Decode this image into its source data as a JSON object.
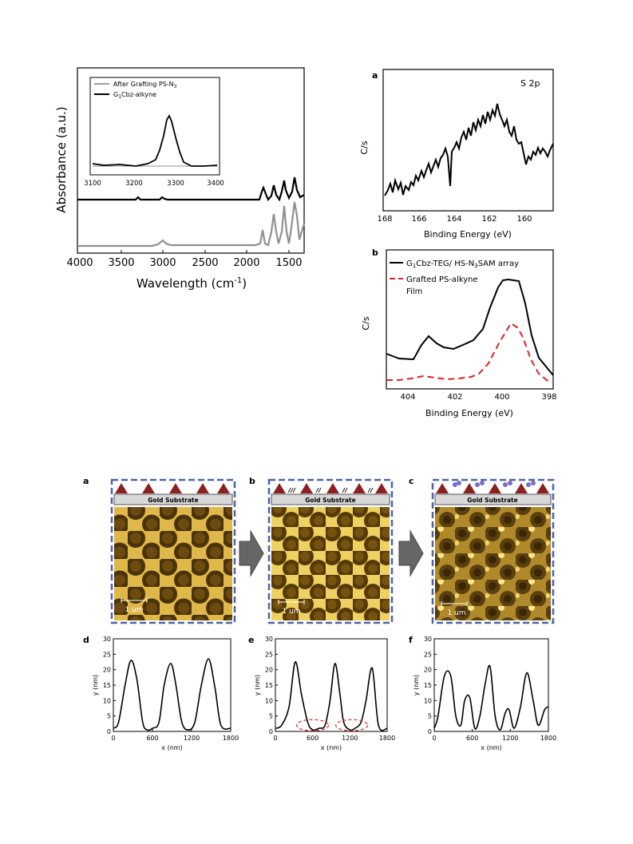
{
  "fig1": {
    "ir": {
      "xlabel": "Wavelength (cm",
      "xlabel_sup": "-1",
      "xlabel_end": ")",
      "ylabel": "Absorbance (a.u.)",
      "xticks": [
        "4000",
        "3500",
        "3000",
        "2500",
        "2000",
        "1500"
      ],
      "inset": {
        "legend": [
          "After Grafting PS-N",
          "G",
          "Cbz-alkyne"
        ],
        "legend_sub": [
          "3",
          "1"
        ],
        "xticks": [
          "3100",
          "3200",
          "3300",
          "3400"
        ]
      }
    },
    "xps_s": {
      "label": "a",
      "annotation": "S 2p",
      "ylabel": "C/s",
      "xlabel": "Binding Energy (eV)",
      "xticks": [
        "168",
        "166",
        "164",
        "162",
        "160"
      ]
    },
    "xps_n": {
      "label": "b",
      "ylabel": "C/s",
      "xlabel": "Binding Energy (eV)",
      "xticks": [
        "404",
        "402",
        "400",
        "398"
      ],
      "legend": [
        "G",
        "Cbz-TEG/ HS-N",
        "SAM array",
        "Grafted PS-alkyne",
        "Film"
      ],
      "legend_sub": [
        "1",
        "3"
      ]
    }
  },
  "fig2": {
    "panels": [
      {
        "label": "a",
        "substrate": "Gold Substrate",
        "scale": "1 um"
      },
      {
        "label": "b",
        "substrate": "Gold Substrate",
        "scale": "1 um"
      },
      {
        "label": "c",
        "substrate": "Gold Substrate",
        "scale": "1 um"
      }
    ],
    "profiles": [
      {
        "label": "d",
        "ylabel": "y (nm)",
        "xlabel": "x (nm)"
      },
      {
        "label": "e",
        "ylabel": "y (nm)",
        "xlabel": "x (nm)"
      },
      {
        "label": "f",
        "ylabel": "y (nm)",
        "xlabel": "x (nm)"
      }
    ],
    "profile_yticks": [
      "0",
      "5",
      "10",
      "15",
      "20",
      "25",
      "30"
    ],
    "profile_xticks": [
      "0",
      "600",
      "1200",
      "1800"
    ]
  },
  "chart_data": [
    {
      "type": "line",
      "title": "",
      "xlabel": "Wavelength (cm-1)",
      "ylabel": "Absorbance (a.u.)",
      "xlim": [
        4000,
        1250
      ],
      "series": [
        {
          "name": "G1Cbz-alkyne",
          "x": [
            4000,
            3300,
            3285,
            3270,
            3000,
            2925,
            2850,
            1720,
            1700,
            1600,
            1580,
            1490,
            1450,
            1370,
            1300
          ],
          "values": [
            0.62,
            0.62,
            0.64,
            0.62,
            0.62,
            0.65,
            0.62,
            0.62,
            0.7,
            0.62,
            0.7,
            0.62,
            0.74,
            0.62,
            0.7
          ]
        },
        {
          "name": "After Grafting PS-N3",
          "x": [
            4000,
            3100,
            3025,
            2925,
            2850,
            1720,
            1600,
            1580,
            1490,
            1450,
            1370,
            1300
          ],
          "values": [
            0.2,
            0.2,
            0.21,
            0.24,
            0.2,
            0.35,
            0.38,
            0.3,
            0.42,
            0.45,
            0.45,
            0.38
          ]
        }
      ]
    },
    {
      "type": "line",
      "title": "",
      "xlabel": "Binding Energy (eV)",
      "ylabel": "C/s",
      "annotation": "S 2p",
      "xlim": [
        168,
        159
      ],
      "series": [
        {
          "name": "S 2p",
          "x": [
            168,
            167,
            166,
            165,
            164,
            163,
            162,
            161.5,
            161,
            160.5,
            160,
            159.5,
            159
          ],
          "values": [
            0.15,
            0.2,
            0.3,
            0.35,
            0.5,
            0.65,
            0.8,
            0.75,
            0.55,
            0.4,
            0.42,
            0.45,
            0.5
          ]
        }
      ]
    },
    {
      "type": "line",
      "title": "",
      "xlabel": "Binding Energy (eV)",
      "ylabel": "C/s",
      "xlim": [
        405,
        398
      ],
      "series": [
        {
          "name": "G1Cbz-TEG/ HS-N3SAM array",
          "x": [
            405,
            404,
            403.3,
            402.5,
            402,
            401,
            400.2,
            399.7,
            399.3,
            398.8,
            398
          ],
          "values": [
            0.45,
            0.42,
            0.62,
            0.48,
            0.46,
            0.53,
            0.78,
            0.92,
            0.88,
            0.55,
            0.2
          ]
        },
        {
          "name": "Grafted PS-alkyne Film",
          "x": [
            405,
            404,
            403,
            402,
            401,
            400.3,
            399.7,
            399.2,
            398.7,
            398
          ],
          "values": [
            0.05,
            0.06,
            0.09,
            0.06,
            0.1,
            0.3,
            0.55,
            0.45,
            0.2,
            0.02
          ]
        }
      ]
    },
    {
      "type": "line",
      "title": "",
      "xlabel": "x (nm)",
      "ylabel": "y (nm)",
      "xlim": [
        0,
        1800
      ],
      "ylim": [
        0,
        30
      ],
      "series": [
        {
          "x": [
            0,
            80,
            180,
            270,
            360,
            450,
            520,
            600,
            700,
            780,
            880,
            960,
            1050,
            1150,
            1250,
            1350,
            1460,
            1560,
            1650,
            1800
          ],
          "values": [
            1,
            3,
            15,
            23,
            17,
            3,
            0.5,
            1,
            3,
            15,
            22,
            15,
            3,
            0.5,
            3,
            15,
            23.5,
            14,
            2,
            1
          ]
        }
      ]
    },
    {
      "type": "line",
      "title": "",
      "xlabel": "x (nm)",
      "ylabel": "y (nm)",
      "xlim": [
        0,
        1800
      ],
      "ylim": [
        0,
        30
      ],
      "series": [
        {
          "x": [
            0,
            100,
            220,
            320,
            420,
            520,
            600,
            700,
            800,
            880,
            960,
            1040,
            1100,
            1200,
            1280,
            1380,
            1460,
            1560,
            1660,
            1800
          ],
          "values": [
            1,
            2,
            8,
            22.5,
            12,
            3,
            0.5,
            1,
            2,
            10,
            22,
            12,
            3,
            0.5,
            1,
            3,
            10,
            20.5,
            2,
            1
          ]
        }
      ]
    },
    {
      "type": "line",
      "title": "",
      "xlabel": "x (nm)",
      "ylabel": "y (nm)",
      "xlim": [
        0,
        1800
      ],
      "ylim": [
        0,
        30
      ],
      "series": [
        {
          "x": [
            0,
            60,
            160,
            260,
            340,
            420,
            480,
            560,
            640,
            720,
            800,
            880,
            960,
            1040,
            1120,
            1180,
            1260,
            1360,
            1460,
            1560,
            1640,
            1740,
            1800
          ],
          "values": [
            1,
            5,
            18,
            18,
            5,
            2,
            10,
            11,
            1,
            5,
            15,
            21,
            5,
            0.5,
            6,
            7,
            1,
            8,
            19,
            10,
            2,
            7,
            8
          ]
        }
      ]
    }
  ]
}
